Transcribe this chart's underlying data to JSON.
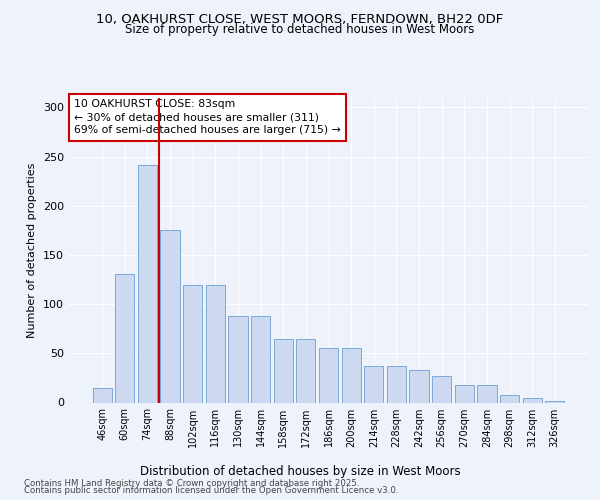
{
  "title_line1": "10, OAKHURST CLOSE, WEST MOORS, FERNDOWN, BH22 0DF",
  "title_line2": "Size of property relative to detached houses in West Moors",
  "xlabel": "Distribution of detached houses by size in West Moors",
  "ylabel": "Number of detached properties",
  "categories": [
    "46sqm",
    "60sqm",
    "74sqm",
    "88sqm",
    "102sqm",
    "116sqm",
    "130sqm",
    "144sqm",
    "158sqm",
    "172sqm",
    "186sqm",
    "200sqm",
    "214sqm",
    "228sqm",
    "242sqm",
    "256sqm",
    "270sqm",
    "284sqm",
    "298sqm",
    "312sqm",
    "326sqm"
  ],
  "bar_heights": [
    15,
    131,
    241,
    175,
    119,
    119,
    88,
    88,
    65,
    65,
    55,
    55,
    37,
    37,
    33,
    27,
    18,
    18,
    8,
    5,
    2
  ],
  "bar_color": "#ccd9f0",
  "bar_edge_color": "#6b9fd4",
  "annotation_box_color": "#cc0000",
  "vline_color": "#cc0000",
  "vline_x": 2.5,
  "annotation_text": "10 OAKHURST CLOSE: 83sqm\n← 30% of detached houses are smaller (311)\n69% of semi-detached houses are larger (715) →",
  "footer_line1": "Contains HM Land Registry data © Crown copyright and database right 2025.",
  "footer_line2": "Contains public sector information licensed under the Open Government Licence v3.0.",
  "background_color": "#eef2fb",
  "ylim": [
    0,
    310
  ],
  "yticks": [
    0,
    50,
    100,
    150,
    200,
    250,
    300
  ]
}
